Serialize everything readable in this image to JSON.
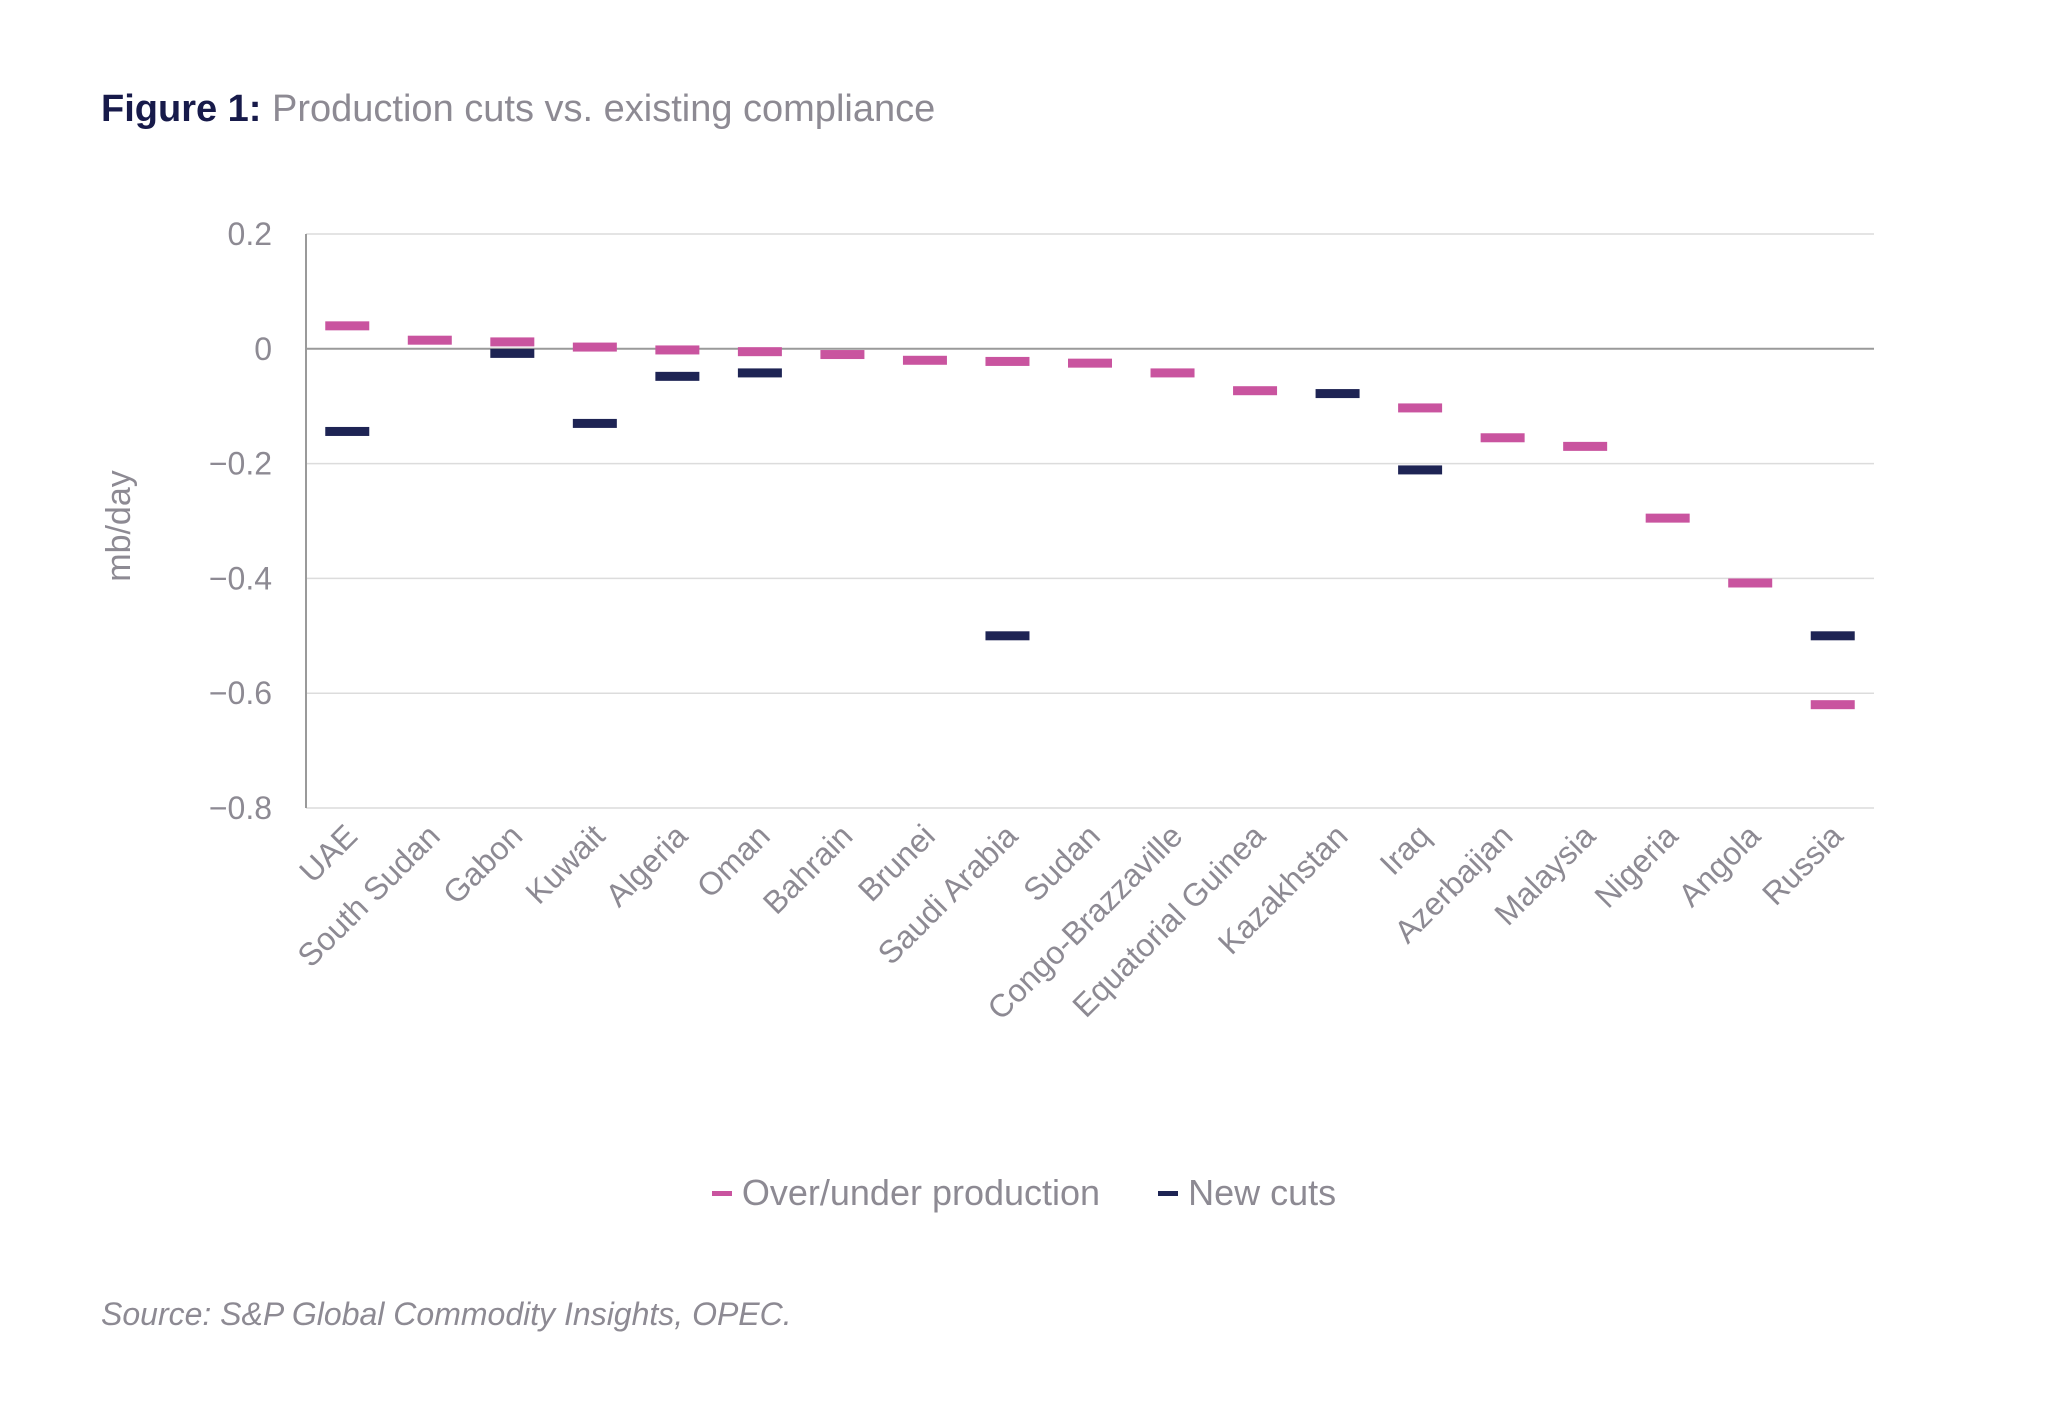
{
  "title": {
    "lead": "Figure 1:",
    "text": "Production cuts vs. existing compliance"
  },
  "source": "Source: S&P Global Commodity Insights, OPEC.",
  "colors": {
    "over_under": "#c9549f",
    "new_cuts": "#1e2454",
    "grid": "#dcdcdc",
    "axis": "#9a9a9a",
    "text": "#8d8a93"
  },
  "chart_data": {
    "type": "scatter",
    "marker": "dash",
    "ylabel": "mb/day",
    "ylim": [
      -0.8,
      0.2
    ],
    "yticks": [
      0.2,
      0,
      -0.2,
      -0.4,
      -0.6,
      -0.8
    ],
    "ytick_labels": [
      "0.2",
      "0",
      "−0.2",
      "−0.4",
      "−0.6",
      "−0.8"
    ],
    "grid": true,
    "legend_position": "bottom",
    "categories": [
      "UAE",
      "South Sudan",
      "Gabon",
      "Kuwait",
      "Algeria",
      "Oman",
      "Bahrain",
      "Brunei",
      "Saudi Arabia",
      "Sudan",
      "Congo-Brazzaville",
      "Equatorial Guinea",
      "Kazakhstan",
      "Iraq",
      "Azerbaijan",
      "Malaysia",
      "Nigeria",
      "Angola",
      "Russia"
    ],
    "series": [
      {
        "name": "Over/under production",
        "color": "#c9549f",
        "values": [
          0.04,
          0.015,
          0.012,
          0.003,
          -0.002,
          -0.005,
          -0.01,
          -0.02,
          -0.022,
          -0.025,
          -0.042,
          -0.073,
          null,
          -0.103,
          -0.155,
          -0.17,
          -0.295,
          -0.408,
          -0.62
        ]
      },
      {
        "name": "New cuts",
        "color": "#1e2454",
        "values": [
          -0.144,
          null,
          -0.008,
          -0.13,
          -0.048,
          -0.042,
          null,
          null,
          -0.5,
          null,
          null,
          null,
          -0.078,
          -0.211,
          null,
          null,
          null,
          null,
          -0.5
        ]
      }
    ]
  }
}
